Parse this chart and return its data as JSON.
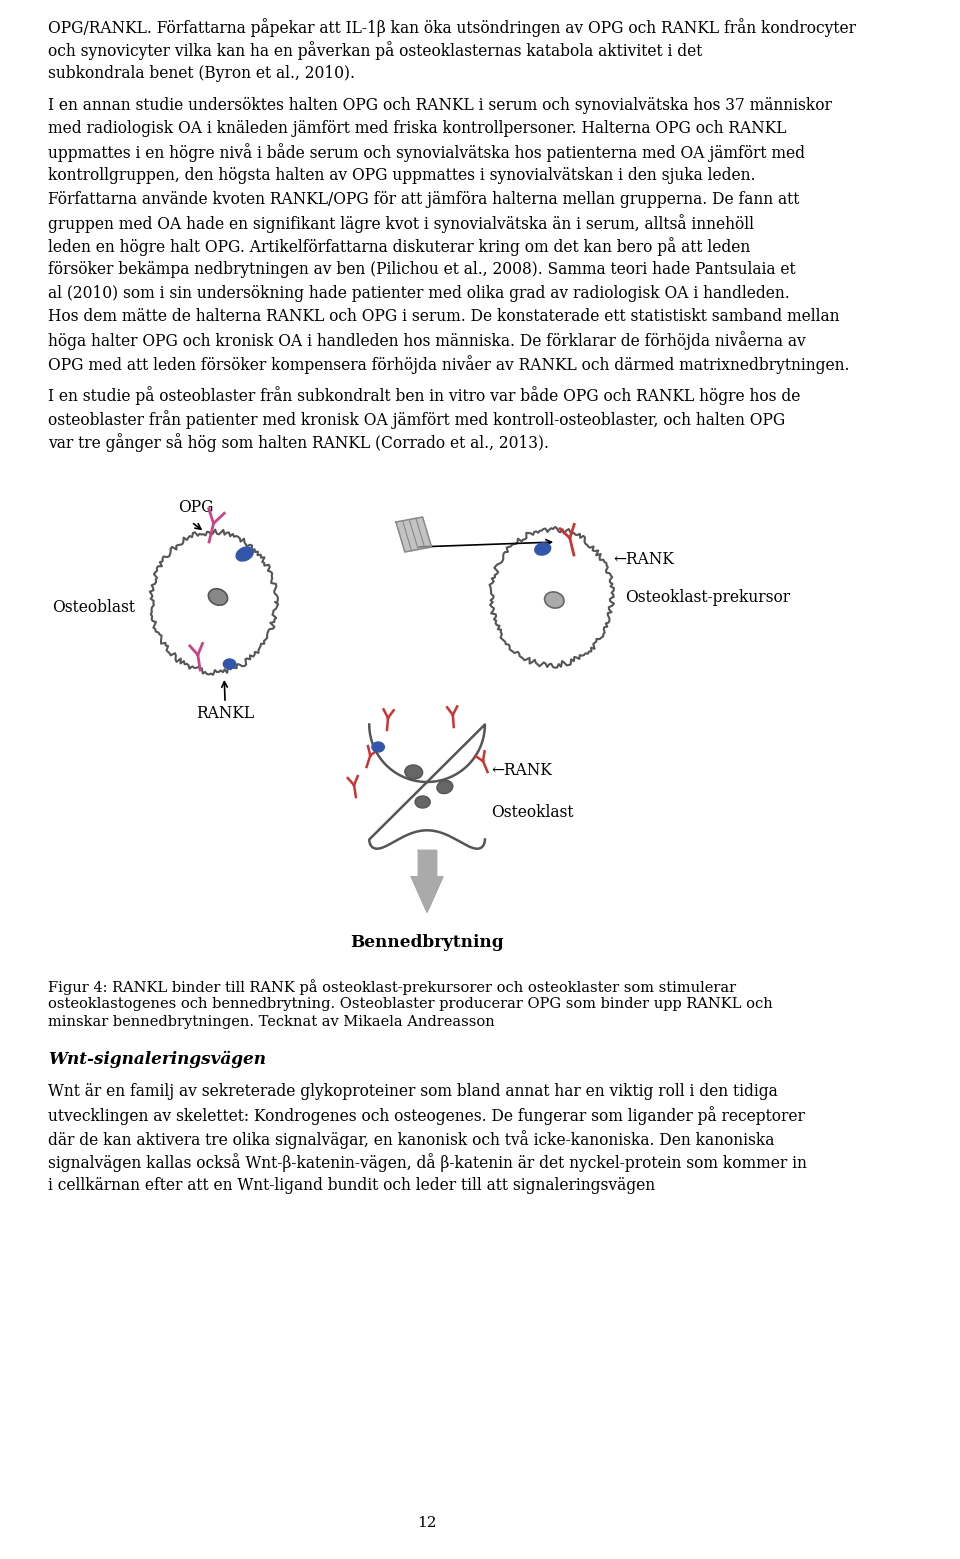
{
  "background_color": "#ffffff",
  "page_number": "12",
  "paragraphs": [
    "OPG/RANKL. Författarna påpekar att IL-1β kan öka utsöndringen av OPG och RANKL från kondrocyter och synovicyter vilka kan ha en påverkan på osteoklasternas katabola aktivitet i det subkondrala benet (Byron et al., 2010).",
    "I en annan studie undersöktes halten OPG och RANKL i serum och synovialvätska hos 37 människor med radiologisk OA i knäleden jämfört med friska kontrollpersoner. Halterna OPG och RANKL uppmattes i en högre nivå i både serum och synovialvätska hos patienterna med OA jämfört med kontrollgruppen, den högsta halten av OPG uppmattes i synovialvätskan i den sjuka leden. Författarna använde kvoten RANKL/OPG för att jämföra halterna mellan grupperna. De fann att gruppen med OA hade en signifikant lägre kvot i synovialvätska än i serum, alltså innehöll leden en högre halt OPG. Artikelförfattarna diskuterar kring om det kan bero på att leden försöker bekämpa nedbrytningen av ben (Pilichou et al., 2008). Samma teori hade Pantsulaia et al (2010) som i sin undersökning hade patienter med olika grad av radiologisk OA i handleden. Hos dem mätte de halterna RANKL och OPG i serum. De konstaterade ett statistiskt samband mellan höga halter OPG och kronisk OA i handleden hos människa. De förklarar de förhöjda nivåerna av OPG med att leden försöker kompensera förhöjda nivåer av RANKL och därmed matrixnedbrytningen.",
    "I en studie på osteoblaster från subkondralt ben in vitro var både OPG och RANKL högre hos de osteoblaster från patienter med kronisk OA jämfört med kontroll-osteoblaster, och halten OPG var tre gånger så hög som halten RANKL (Corrado et al., 2013)."
  ],
  "figure_caption_line1": "Figur 4: RANKL binder till RANK på osteoklast-prekursorer och osteoklaster som stimulerar",
  "figure_caption_line2": "osteoklastogenes och bennedbrytning. Osteoblaster producerar OPG som binder upp RANKL och",
  "figure_caption_line3": "minskar bennedbrytningen. Tecknat av Mikaela Andreasson",
  "section_heading": "Wnt-signaleringsvägen",
  "section_para": "Wnt är en familj av sekreterade glykoproteiner som bland annat har en viktig roll i den tidiga utvecklingen av skelettet: Kondrogenes och osteogenes. De fungerar som ligander på receptorer där de kan aktivera tre olika signalvägar, en kanonisk och två icke-kanoniska. Den kanoniska signalvägen kallas också Wnt-β-katenin-vägen, då β-katenin är det nyckel-protein som kommer in i cellkärnan efter att en Wnt-ligand bundit och leder till att signaleringsvägen"
}
